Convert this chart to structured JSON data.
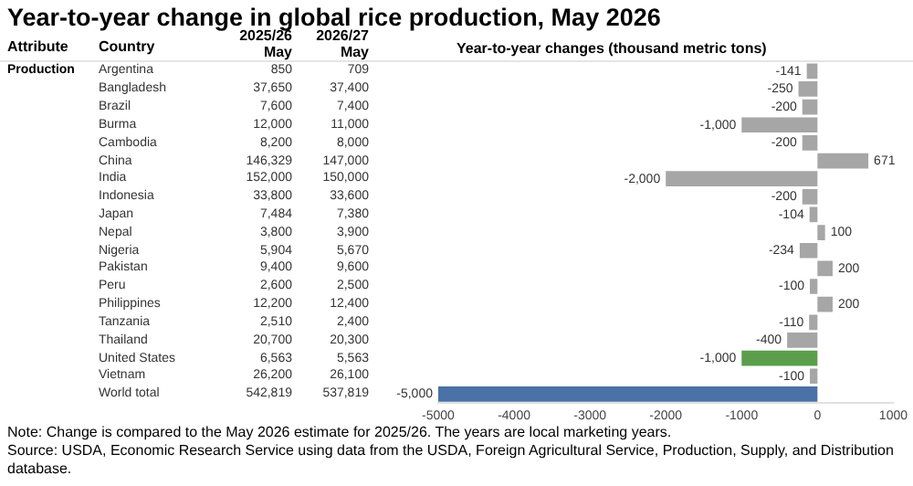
{
  "chart_data": [
    {
      "type": "heatmap",
      "data_labels": true,
      "title": "Year-to-year change in global rice production, May 2026",
      "ylabel": "Country",
      "annotations": [
        "Attribute",
        "Production"
      ],
      "categories": [
        "2025/26 May",
        "2026/27 May"
      ],
      "y_categories": [
        "Argentina",
        "Bangladesh",
        "Brazil",
        "Burma",
        "Cambodia",
        "China",
        "India",
        "Indonesia",
        "Japan",
        "Nepal",
        "Nigeria",
        "Pakistan",
        "Peru",
        "Philippines",
        "Tanzania",
        "Thailand",
        "United States",
        "Vietnam",
        "World total"
      ],
      "cells": [
        [
          850,
          709
        ],
        [
          37650,
          37400
        ],
        [
          7600,
          7400
        ],
        [
          12000,
          11000
        ],
        [
          8200,
          8000
        ],
        [
          146329,
          147000
        ],
        [
          152000,
          150000
        ],
        [
          33800,
          33600
        ],
        [
          7484,
          7380
        ],
        [
          3800,
          3900
        ],
        [
          5904,
          5670
        ],
        [
          9400,
          9600
        ],
        [
          2600,
          2500
        ],
        [
          12200,
          12400
        ],
        [
          2510,
          2400
        ],
        [
          20700,
          20300
        ],
        [
          6563,
          5563
        ],
        [
          26200,
          26100
        ],
        [
          542819,
          537819
        ]
      ],
      "cell_labels": [
        [
          "850",
          "709"
        ],
        [
          "37,650",
          "37,400"
        ],
        [
          "7,600",
          "7,400"
        ],
        [
          "12,000",
          "11,000"
        ],
        [
          "8,200",
          "8,000"
        ],
        [
          "146,329",
          "147,000"
        ],
        [
          "152,000",
          "150,000"
        ],
        [
          "33,800",
          "33,600"
        ],
        [
          "7,484",
          "7,380"
        ],
        [
          "3,800",
          "3,900"
        ],
        [
          "5,904",
          "5,670"
        ],
        [
          "9,400",
          "9,600"
        ],
        [
          "2,600",
          "2,500"
        ],
        [
          "12,200",
          "12,400"
        ],
        [
          "2,510",
          "2,400"
        ],
        [
          "20,700",
          "20,300"
        ],
        [
          "6,563",
          "5,563"
        ],
        [
          "26,200",
          "26,100"
        ],
        [
          "542,819",
          "537,819"
        ]
      ]
    },
    {
      "type": "bar",
      "orientation": "horizontal",
      "title": "Year-to-year changes (thousand metric tons)",
      "tick_labels": "x",
      "legend": false,
      "grid": false,
      "categories": [
        null,
        null,
        null,
        null,
        null,
        null,
        null,
        null,
        null,
        null,
        null,
        null,
        null,
        null,
        null,
        null,
        null,
        null,
        null
      ],
      "values": [
        -141,
        -250,
        -200,
        -1000,
        -200,
        671,
        -2000,
        -200,
        -104,
        100,
        -234,
        200,
        -100,
        200,
        -110,
        -400,
        -1000,
        -100,
        -5000
      ],
      "value_labels": [
        "-141",
        "-250",
        "-200",
        "-1,000",
        "-200",
        "671",
        "-2,000",
        "-200",
        "-104",
        "100",
        "-234",
        "200",
        "-100",
        "200",
        "-110",
        "-400",
        "-1,000",
        "-100",
        "-5,000"
      ],
      "colors": [
        "#a6a6a6",
        "#a6a6a6",
        "#a6a6a6",
        "#a6a6a6",
        "#a6a6a6",
        "#a6a6a6",
        "#a6a6a6",
        "#a6a6a6",
        "#a6a6a6",
        "#a6a6a6",
        "#a6a6a6",
        "#a6a6a6",
        "#a6a6a6",
        "#a6a6a6",
        "#a6a6a6",
        "#a6a6a6",
        "#5a9e4b",
        "#a6a6a6",
        "#4a72a6"
      ],
      "xlim": [
        -5000,
        1000
      ],
      "xticks": [
        -5000,
        -4000,
        -3000,
        -2000,
        -1000,
        0,
        1000
      ],
      "annotations": [
        "Note: Change is compared to the May 2026 estimate for 2025/26. The years are local marketing years.",
        "Source: USDA, Economic Research Service using data from the USDA, Foreign Agricultural Service, Production, Supply, and Distribution database."
      ]
    }
  ]
}
